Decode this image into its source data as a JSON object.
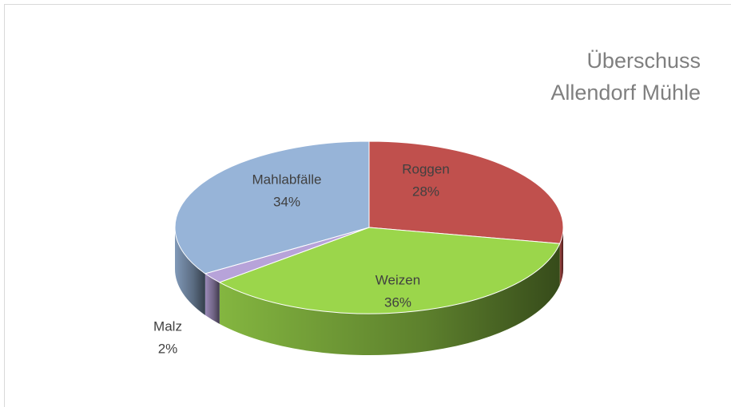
{
  "chart_data": {
    "type": "pie3d",
    "title": [
      "Überschuss",
      "Allendorf Mühle"
    ],
    "categories": [
      "Roggen",
      "Weizen",
      "Malz",
      "Mahlabfälle"
    ],
    "values": [
      28,
      36,
      2,
      34
    ],
    "value_labels": [
      "28%",
      "36%",
      "2%",
      "34%"
    ],
    "colors": [
      "#c0504d",
      "#9bd64b",
      "#b7a3d9",
      "#97b4d8"
    ]
  }
}
